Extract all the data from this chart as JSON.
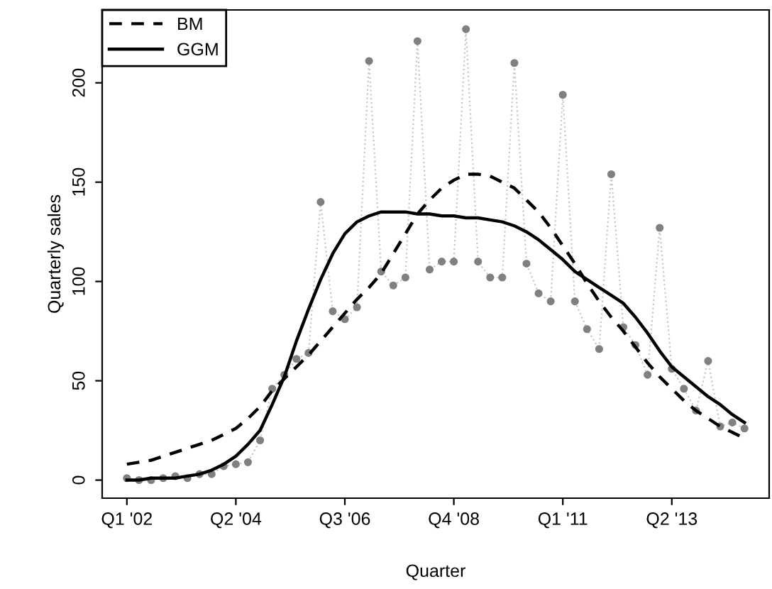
{
  "chart_data": {
    "type": "line",
    "xlabel": "Quarter",
    "ylabel": "Quarterly sales",
    "categories": [
      "Q1 '02",
      null,
      null,
      null,
      null,
      null,
      null,
      null,
      null,
      "Q2 '04",
      null,
      null,
      null,
      null,
      null,
      null,
      null,
      null,
      "Q3 '06",
      null,
      null,
      null,
      null,
      null,
      null,
      null,
      null,
      "Q4 '08",
      null,
      null,
      null,
      null,
      null,
      null,
      null,
      null,
      "Q1 '11",
      null,
      null,
      null,
      null,
      null,
      null,
      null,
      null,
      "Q2 '13",
      null,
      null,
      null,
      null,
      null,
      null
    ],
    "ylim": [
      -9.1,
      236.7
    ],
    "yticks": [
      0,
      50,
      100,
      150,
      200
    ],
    "grid": false,
    "legend": "top left",
    "series": [
      {
        "color": "#808080",
        "marker": "circle",
        "line_style": "dotted",
        "values": [
          1,
          0,
          0,
          1,
          2,
          1,
          3,
          3,
          7,
          8,
          9,
          20,
          46,
          53,
          61,
          64,
          140,
          85,
          81,
          87,
          211,
          105,
          98,
          102,
          221,
          106,
          110,
          110,
          227,
          110,
          102,
          102,
          210,
          109,
          94,
          90,
          194,
          90,
          76,
          66,
          154,
          77,
          68,
          53,
          127,
          56,
          46,
          35,
          60,
          27,
          29,
          26
        ]
      },
      {
        "name": "BM",
        "color": "#000000",
        "marker": "none",
        "line_style": "dashed",
        "values": [
          8,
          9,
          10,
          12,
          14,
          16,
          18,
          20,
          23,
          26,
          31,
          37,
          45,
          51,
          57,
          63,
          70,
          77,
          84,
          91,
          97,
          104,
          114,
          124,
          134,
          141,
          147,
          151,
          154,
          154,
          153,
          150,
          147,
          141,
          135,
          127,
          118,
          109,
          99,
          90,
          82,
          75,
          67,
          59,
          52,
          46,
          40,
          35,
          31,
          27,
          24,
          21
        ]
      },
      {
        "name": "GGM",
        "color": "#000000",
        "marker": "none",
        "line_style": "solid",
        "values": [
          0,
          0,
          1,
          1,
          1,
          2,
          3,
          5,
          8,
          12,
          18,
          25,
          38,
          52,
          70,
          86,
          101,
          114,
          124,
          130,
          133,
          135,
          135,
          135,
          134,
          134,
          133,
          133,
          132,
          132,
          131,
          130,
          128,
          125,
          121,
          116,
          111,
          105,
          101,
          97,
          93,
          89,
          82,
          74,
          65,
          57,
          52,
          47,
          42,
          38,
          33,
          29
        ]
      }
    ]
  }
}
